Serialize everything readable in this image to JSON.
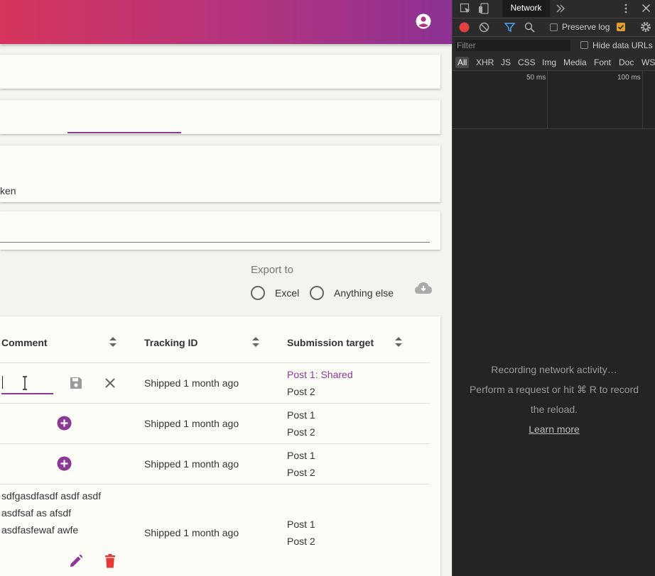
{
  "topbar": {
    "account_icon": "account-circle-icon",
    "gradient": [
      "#d6355c",
      "#8d3293"
    ]
  },
  "card3": {
    "text": "ken"
  },
  "export": {
    "label": "Export to",
    "options": [
      "Excel",
      "Anything else"
    ],
    "cloud_icon": "cloud-download-icon"
  },
  "table": {
    "headers": {
      "comment": "Comment",
      "tracking": "Tracking ID",
      "submission": "Submission target"
    },
    "rows": [
      {
        "tracking": "Shipped 1 month ago",
        "submission": [
          "Post 1: Shared",
          "Post 2"
        ]
      },
      {
        "tracking": "Shipped 1 month ago",
        "submission": [
          "Post 1",
          "Post 2"
        ]
      },
      {
        "tracking": "Shipped 1 month ago",
        "submission": [
          "Post 1",
          "Post 2"
        ]
      },
      {
        "comment": [
          "sdfgasdfasdf asdf asdf",
          "asdfsaf as afsdf",
          "asdfasfewaf awfe"
        ],
        "tracking": "Shipped 1 month ago",
        "submission": [
          "Post 1",
          "Post 2"
        ]
      }
    ]
  },
  "colors": {
    "accent": "#8b3a93",
    "delete": "#e53935",
    "devtools_bg": "#242424"
  },
  "devtools": {
    "tab": "Network",
    "preserve_log": "Preserve log",
    "filter_placeholder": "Filter",
    "hide_data_urls": "Hide data URLs",
    "types": [
      "All",
      "XHR",
      "JS",
      "CSS",
      "Img",
      "Media",
      "Font",
      "Doc",
      "WS"
    ],
    "ticks": [
      "50 ms",
      "100 ms"
    ],
    "messages": [
      "Recording network activity…",
      "Perform a request or hit ⌘ R to record",
      "the reload."
    ],
    "learn_more": "Learn more"
  }
}
